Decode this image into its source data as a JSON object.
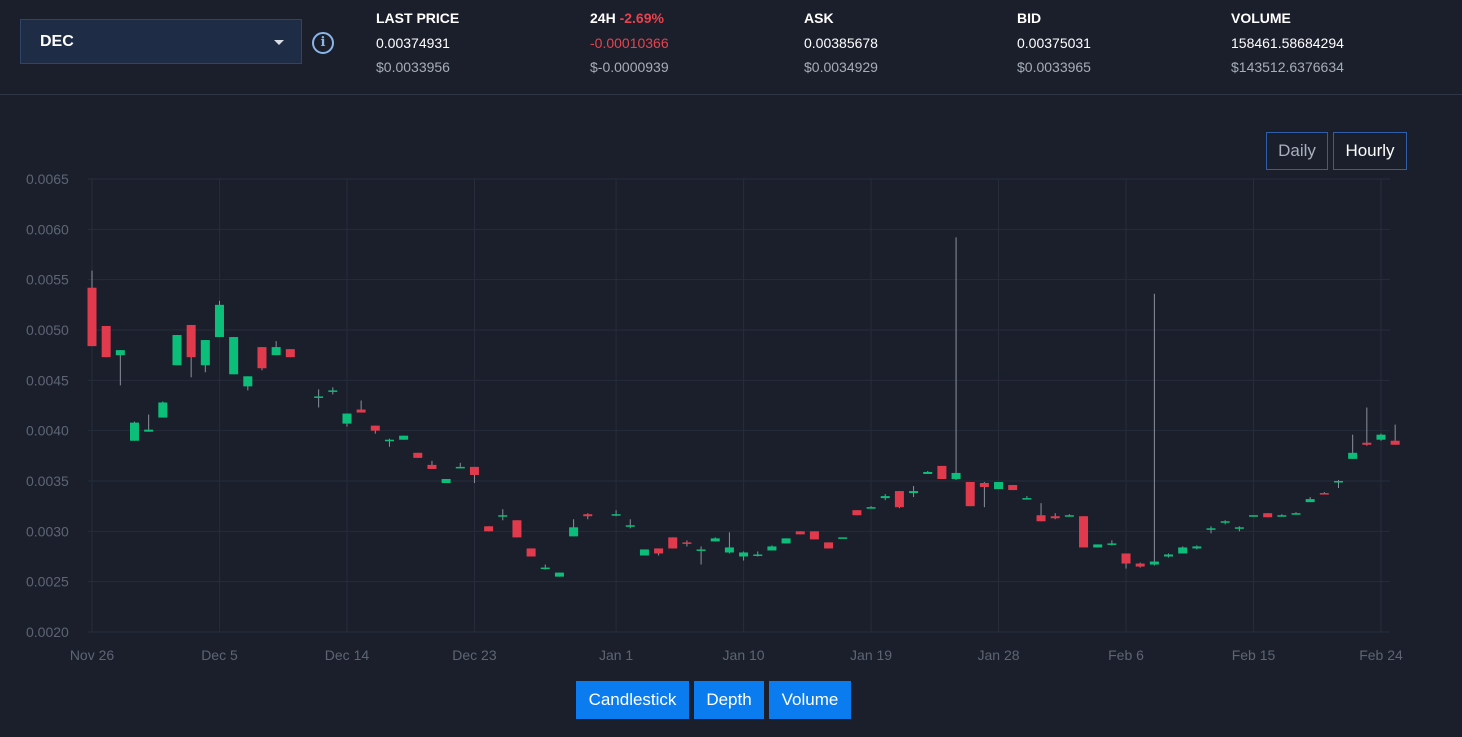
{
  "token": {
    "symbol": "DEC"
  },
  "stats": [
    {
      "label": "LAST PRICE",
      "change": "",
      "value": "0.00374931",
      "usd": "$0.0033956"
    },
    {
      "label": "24H",
      "change": "-2.69%",
      "value": "-0.00010366",
      "usd": "$-0.0000939"
    },
    {
      "label": "ASK",
      "change": "",
      "value": "0.00385678",
      "usd": "$0.0034929"
    },
    {
      "label": "BID",
      "change": "",
      "value": "0.00375031",
      "usd": "$0.0033965"
    },
    {
      "label": "VOLUME",
      "change": "",
      "value": "158461.58684294",
      "usd": "$143512.6376634"
    }
  ],
  "range_buttons": {
    "daily": "Daily",
    "hourly": "Hourly"
  },
  "view_tabs": {
    "candlestick": "Candlestick",
    "depth": "Depth",
    "volume": "Volume"
  },
  "colors": {
    "up": "#0bbf7a",
    "down": "#e23a4d",
    "accent": "#0a7cf0",
    "background": "#1a1f2b"
  },
  "chart_data": {
    "type": "candlestick",
    "ylim": [
      0.002,
      0.0065
    ],
    "yticks": [
      "0.0065",
      "0.0060",
      "0.0055",
      "0.0050",
      "0.0045",
      "0.0040",
      "0.0035",
      "0.0030",
      "0.0025",
      "0.0020"
    ],
    "xticks": [
      "Nov 26",
      "Dec 5",
      "Dec 14",
      "Dec 23",
      "Jan 1",
      "Jan 10",
      "Jan 19",
      "Jan 28",
      "Feb 6",
      "Feb 15",
      "Feb 24"
    ],
    "grid": true,
    "candles": [
      {
        "date": "Nov 26",
        "open": 0.00542,
        "high": 0.00559,
        "low": 0.00484,
        "close": 0.00484
      },
      {
        "date": "Nov 27",
        "open": 0.00504,
        "high": 0.00504,
        "low": 0.00473,
        "close": 0.00473
      },
      {
        "date": "Nov 28",
        "open": 0.00475,
        "high": 0.0048,
        "low": 0.00445,
        "close": 0.0048
      },
      {
        "date": "Nov 29",
        "open": 0.0039,
        "high": 0.00409,
        "low": 0.0039,
        "close": 0.00408
      },
      {
        "date": "Nov 30",
        "open": 0.00399,
        "high": 0.00416,
        "low": 0.00399,
        "close": 0.00401
      },
      {
        "date": "Dec 1",
        "open": 0.00413,
        "high": 0.00429,
        "low": 0.00413,
        "close": 0.00428
      },
      {
        "date": "Dec 2",
        "open": 0.00465,
        "high": 0.00495,
        "low": 0.00465,
        "close": 0.00495
      },
      {
        "date": "Dec 3",
        "open": 0.00505,
        "high": 0.00505,
        "low": 0.00453,
        "close": 0.00473
      },
      {
        "date": "Dec 4",
        "open": 0.00465,
        "high": 0.0049,
        "low": 0.00458,
        "close": 0.0049
      },
      {
        "date": "Dec 5",
        "open": 0.00493,
        "high": 0.00529,
        "low": 0.00493,
        "close": 0.00525
      },
      {
        "date": "Dec 6",
        "open": 0.00456,
        "high": 0.00493,
        "low": 0.00456,
        "close": 0.00493
      },
      {
        "date": "Dec 7",
        "open": 0.00444,
        "high": 0.00454,
        "low": 0.0044,
        "close": 0.00454
      },
      {
        "date": "Dec 8",
        "open": 0.00483,
        "high": 0.00483,
        "low": 0.0046,
        "close": 0.00462
      },
      {
        "date": "Dec 9",
        "open": 0.00475,
        "high": 0.00489,
        "low": 0.00475,
        "close": 0.00483
      },
      {
        "date": "Dec 10",
        "open": 0.00481,
        "high": 0.00481,
        "low": 0.00473,
        "close": 0.00473
      },
      {
        "date": "Dec 12",
        "open": 0.00434,
        "high": 0.00441,
        "low": 0.00423,
        "close": 0.00434
      },
      {
        "date": "Dec 13",
        "open": 0.0044,
        "high": 0.00443,
        "low": 0.00436,
        "close": 0.0044
      },
      {
        "date": "Dec 14",
        "open": 0.00407,
        "high": 0.00417,
        "low": 0.00404,
        "close": 0.00417
      },
      {
        "date": "Dec 15",
        "open": 0.00421,
        "high": 0.0043,
        "low": 0.00418,
        "close": 0.00418
      },
      {
        "date": "Dec 16",
        "open": 0.00405,
        "high": 0.00405,
        "low": 0.00397,
        "close": 0.004
      },
      {
        "date": "Dec 17",
        "open": 0.00391,
        "high": 0.00392,
        "low": 0.00384,
        "close": 0.00391
      },
      {
        "date": "Dec 18",
        "open": 0.00391,
        "high": 0.00395,
        "low": 0.00391,
        "close": 0.00395
      },
      {
        "date": "Dec 19",
        "open": 0.00378,
        "high": 0.00378,
        "low": 0.00373,
        "close": 0.00373
      },
      {
        "date": "Dec 20",
        "open": 0.00366,
        "high": 0.0037,
        "low": 0.00362,
        "close": 0.00362
      },
      {
        "date": "Dec 21",
        "open": 0.00348,
        "high": 0.00352,
        "low": 0.00348,
        "close": 0.00352
      },
      {
        "date": "Dec 22",
        "open": 0.00364,
        "high": 0.00368,
        "low": 0.00364,
        "close": 0.00364
      },
      {
        "date": "Dec 23",
        "open": 0.00364,
        "high": 0.00364,
        "low": 0.00348,
        "close": 0.00356
      },
      {
        "date": "Dec 24",
        "open": 0.00305,
        "high": 0.00305,
        "low": 0.003,
        "close": 0.003
      },
      {
        "date": "Dec 25",
        "open": 0.00316,
        "high": 0.00322,
        "low": 0.00311,
        "close": 0.00316
      },
      {
        "date": "Dec 26",
        "open": 0.00311,
        "high": 0.00311,
        "low": 0.00294,
        "close": 0.00294
      },
      {
        "date": "Dec 27",
        "open": 0.00283,
        "high": 0.00283,
        "low": 0.00275,
        "close": 0.00275
      },
      {
        "date": "Dec 28",
        "open": 0.00264,
        "high": 0.00267,
        "low": 0.00262,
        "close": 0.00264
      },
      {
        "date": "Dec 29",
        "open": 0.00255,
        "high": 0.00259,
        "low": 0.00255,
        "close": 0.00259
      },
      {
        "date": "Dec 30",
        "open": 0.00295,
        "high": 0.00312,
        "low": 0.00295,
        "close": 0.00304
      },
      {
        "date": "Dec 31",
        "open": 0.00317,
        "high": 0.00318,
        "low": 0.00312,
        "close": 0.00315
      },
      {
        "date": "Jan 1",
        "open": 0.00317,
        "high": 0.00321,
        "low": 0.00315,
        "close": 0.00317
      },
      {
        "date": "Jan 2",
        "open": 0.00305,
        "high": 0.00312,
        "low": 0.00303,
        "close": 0.00306
      },
      {
        "date": "Jan 3",
        "open": 0.00276,
        "high": 0.00282,
        "low": 0.00276,
        "close": 0.00282
      },
      {
        "date": "Jan 4",
        "open": 0.00283,
        "high": 0.00283,
        "low": 0.00276,
        "close": 0.00278
      },
      {
        "date": "Jan 5",
        "open": 0.00294,
        "high": 0.00294,
        "low": 0.00283,
        "close": 0.00283
      },
      {
        "date": "Jan 6",
        "open": 0.00289,
        "high": 0.00291,
        "low": 0.00285,
        "close": 0.00288
      },
      {
        "date": "Jan 7",
        "open": 0.00282,
        "high": 0.00285,
        "low": 0.00267,
        "close": 0.00282
      },
      {
        "date": "Jan 8",
        "open": 0.0029,
        "high": 0.00294,
        "low": 0.0029,
        "close": 0.00293
      },
      {
        "date": "Jan 9",
        "open": 0.00279,
        "high": 0.00299,
        "low": 0.00278,
        "close": 0.00284
      },
      {
        "date": "Jan 10",
        "open": 0.00275,
        "high": 0.0028,
        "low": 0.00271,
        "close": 0.00279
      },
      {
        "date": "Jan 11",
        "open": 0.00277,
        "high": 0.0028,
        "low": 0.00275,
        "close": 0.00277
      },
      {
        "date": "Jan 12",
        "open": 0.00281,
        "high": 0.00286,
        "low": 0.00281,
        "close": 0.00285
      },
      {
        "date": "Jan 13",
        "open": 0.00288,
        "high": 0.00293,
        "low": 0.00288,
        "close": 0.00293
      },
      {
        "date": "Jan 14",
        "open": 0.003,
        "high": 0.003,
        "low": 0.00297,
        "close": 0.00297
      },
      {
        "date": "Jan 15",
        "open": 0.003,
        "high": 0.003,
        "low": 0.00292,
        "close": 0.00292
      },
      {
        "date": "Jan 16",
        "open": 0.00289,
        "high": 0.00289,
        "low": 0.00283,
        "close": 0.00283
      },
      {
        "date": "Jan 17",
        "open": 0.00293,
        "high": 0.00294,
        "low": 0.00293,
        "close": 0.00294
      },
      {
        "date": "Jan 18",
        "open": 0.00321,
        "high": 0.00321,
        "low": 0.00316,
        "close": 0.00316
      },
      {
        "date": "Jan 19",
        "open": 0.00323,
        "high": 0.00325,
        "low": 0.00323,
        "close": 0.00324
      },
      {
        "date": "Jan 20",
        "open": 0.00333,
        "high": 0.00337,
        "low": 0.00331,
        "close": 0.00335
      },
      {
        "date": "Jan 21",
        "open": 0.0034,
        "high": 0.0034,
        "low": 0.00323,
        "close": 0.00324
      },
      {
        "date": "Jan 22",
        "open": 0.00338,
        "high": 0.00345,
        "low": 0.00334,
        "close": 0.0034
      },
      {
        "date": "Jan 23",
        "open": 0.00357,
        "high": 0.0036,
        "low": 0.00357,
        "close": 0.00359
      },
      {
        "date": "Jan 24",
        "open": 0.00365,
        "high": 0.00365,
        "low": 0.00352,
        "close": 0.00352
      },
      {
        "date": "Jan 25",
        "open": 0.00352,
        "high": 0.00592,
        "low": 0.00351,
        "close": 0.00358
      },
      {
        "date": "Jan 26",
        "open": 0.00349,
        "high": 0.00349,
        "low": 0.00325,
        "close": 0.00325
      },
      {
        "date": "Jan 27",
        "open": 0.00348,
        "high": 0.00349,
        "low": 0.00324,
        "close": 0.00344
      },
      {
        "date": "Jan 28",
        "open": 0.00342,
        "high": 0.00349,
        "low": 0.00342,
        "close": 0.00349
      },
      {
        "date": "Jan 29",
        "open": 0.00346,
        "high": 0.00346,
        "low": 0.00341,
        "close": 0.00341
      },
      {
        "date": "Jan 30",
        "open": 0.00333,
        "high": 0.00335,
        "low": 0.00332,
        "close": 0.00333
      },
      {
        "date": "Jan 31",
        "open": 0.00316,
        "high": 0.00328,
        "low": 0.0031,
        "close": 0.0031
      },
      {
        "date": "Feb 1",
        "open": 0.00315,
        "high": 0.00318,
        "low": 0.00312,
        "close": 0.00313
      },
      {
        "date": "Feb 2",
        "open": 0.00316,
        "high": 0.00317,
        "low": 0.00315,
        "close": 0.00316
      },
      {
        "date": "Feb 3",
        "open": 0.00315,
        "high": 0.00315,
        "low": 0.00284,
        "close": 0.00284
      },
      {
        "date": "Feb 4",
        "open": 0.00284,
        "high": 0.00287,
        "low": 0.00284,
        "close": 0.00287
      },
      {
        "date": "Feb 5",
        "open": 0.00288,
        "high": 0.00291,
        "low": 0.00286,
        "close": 0.00288
      },
      {
        "date": "Feb 6",
        "open": 0.00278,
        "high": 0.00278,
        "low": 0.00263,
        "close": 0.00268
      },
      {
        "date": "Feb 7",
        "open": 0.00268,
        "high": 0.00269,
        "low": 0.00264,
        "close": 0.00265
      },
      {
        "date": "Feb 8",
        "open": 0.00267,
        "high": 0.00536,
        "low": 0.00266,
        "close": 0.0027
      },
      {
        "date": "Feb 9",
        "open": 0.00275,
        "high": 0.00278,
        "low": 0.00274,
        "close": 0.00277
      },
      {
        "date": "Feb 10",
        "open": 0.00278,
        "high": 0.00285,
        "low": 0.00278,
        "close": 0.00284
      },
      {
        "date": "Feb 11",
        "open": 0.00283,
        "high": 0.00286,
        "low": 0.00282,
        "close": 0.00285
      },
      {
        "date": "Feb 12",
        "open": 0.00302,
        "high": 0.00305,
        "low": 0.00298,
        "close": 0.00303
      },
      {
        "date": "Feb 13",
        "open": 0.00309,
        "high": 0.00311,
        "low": 0.00307,
        "close": 0.0031
      },
      {
        "date": "Feb 14",
        "open": 0.00303,
        "high": 0.00305,
        "low": 0.003,
        "close": 0.00304
      },
      {
        "date": "Feb 15",
        "open": 0.00316,
        "high": 0.00316,
        "low": 0.00315,
        "close": 0.00316
      },
      {
        "date": "Feb 16",
        "open": 0.00318,
        "high": 0.00318,
        "low": 0.00314,
        "close": 0.00314
      },
      {
        "date": "Feb 17",
        "open": 0.00316,
        "high": 0.00317,
        "low": 0.00315,
        "close": 0.00316
      },
      {
        "date": "Feb 18",
        "open": 0.00318,
        "high": 0.00319,
        "low": 0.00317,
        "close": 0.00318
      },
      {
        "date": "Feb 19",
        "open": 0.00329,
        "high": 0.00334,
        "low": 0.00329,
        "close": 0.00332
      },
      {
        "date": "Feb 20",
        "open": 0.00338,
        "high": 0.00339,
        "low": 0.00337,
        "close": 0.00337
      },
      {
        "date": "Feb 21",
        "open": 0.0035,
        "high": 0.00351,
        "low": 0.00343,
        "close": 0.0035
      },
      {
        "date": "Feb 22",
        "open": 0.00372,
        "high": 0.00396,
        "low": 0.00372,
        "close": 0.00378
      },
      {
        "date": "Feb 23",
        "open": 0.00388,
        "high": 0.00423,
        "low": 0.00385,
        "close": 0.00386
      },
      {
        "date": "Feb 24",
        "open": 0.00391,
        "high": 0.00397,
        "low": 0.0039,
        "close": 0.00396
      },
      {
        "date": "Feb 25",
        "open": 0.0039,
        "high": 0.00406,
        "low": 0.00386,
        "close": 0.00386
      }
    ]
  }
}
